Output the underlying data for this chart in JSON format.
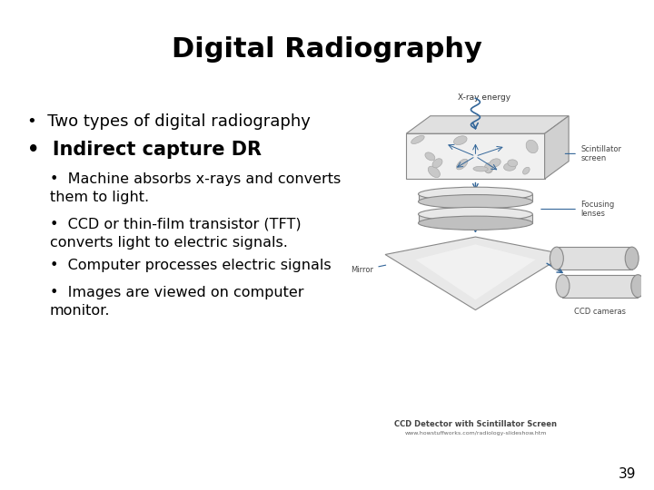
{
  "title": "Digital Radiography",
  "title_fontsize": 22,
  "title_fontweight": "bold",
  "bg_color": "#ffffff",
  "text_color": "#000000",
  "bullet1": "Two types of digital radiography",
  "bullet2": "Indirect capture DR",
  "sub_bullets": [
    "Machine absorbs x-rays and converts\nthem to light.",
    "CCD or thin-film transistor (TFT)\nconverts light to electric signals.",
    "Computer processes electric signals",
    "Images are viewed on computer\nmonitor."
  ],
  "page_number": "39",
  "bullet1_fontsize": 13,
  "bullet2_fontsize": 15,
  "sub_bullet_fontsize": 11.5
}
